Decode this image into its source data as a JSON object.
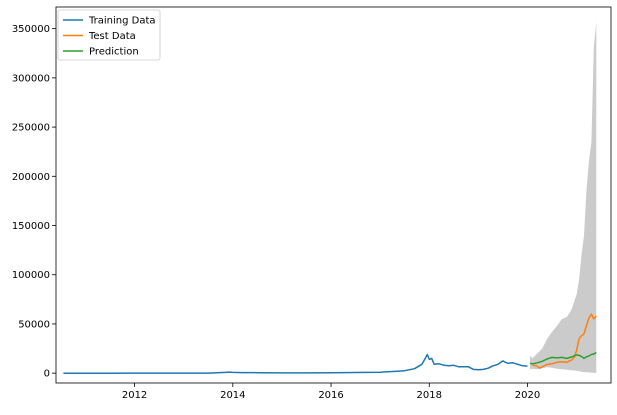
{
  "chart_data": {
    "type": "line",
    "title": "",
    "xlabel": "",
    "ylabel": "",
    "xlim": [
      2010.4,
      2021.7
    ],
    "ylim": [
      -10000,
      372000
    ],
    "x_ticks": [
      2012,
      2014,
      2016,
      2018,
      2020
    ],
    "y_ticks": [
      0,
      50000,
      100000,
      150000,
      200000,
      250000,
      300000,
      350000
    ],
    "legend": {
      "placement": "top-left"
    },
    "grid": false,
    "series": [
      {
        "name": "Training Data",
        "color": "#1f77b4",
        "x": [
          2010.55,
          2011.0,
          2011.5,
          2012.0,
          2012.5,
          2013.0,
          2013.5,
          2013.85,
          2013.92,
          2014.0,
          2014.2,
          2014.5,
          2015.0,
          2015.5,
          2016.0,
          2016.5,
          2017.0,
          2017.3,
          2017.5,
          2017.7,
          2017.85,
          2017.93,
          2017.96,
          2018.0,
          2018.05,
          2018.1,
          2018.2,
          2018.3,
          2018.4,
          2018.5,
          2018.6,
          2018.7,
          2018.8,
          2018.85,
          2018.9,
          2019.0,
          2019.1,
          2019.2,
          2019.3,
          2019.4,
          2019.5,
          2019.55,
          2019.6,
          2019.7,
          2019.8,
          2019.9,
          2020.0
        ],
        "y": [
          0,
          0,
          0,
          10,
          10,
          20,
          100,
          800,
          1100,
          800,
          600,
          500,
          250,
          250,
          400,
          650,
          1000,
          1800,
          2500,
          4500,
          9000,
          16000,
          19000,
          14000,
          15000,
          9000,
          9500,
          8000,
          7500,
          8000,
          6500,
          6500,
          6500,
          5000,
          3800,
          3500,
          3800,
          5000,
          7500,
          9000,
          12500,
          11000,
          10000,
          10500,
          9000,
          7500,
          7200
        ]
      },
      {
        "name": "Test Data",
        "color": "#ff7f0e",
        "x": [
          2020.1,
          2020.2,
          2020.25,
          2020.3,
          2020.4,
          2020.5,
          2020.6,
          2020.7,
          2020.8,
          2020.9,
          2020.95,
          2021.0,
          2021.05,
          2021.1,
          2021.15,
          2021.2,
          2021.25,
          2021.3,
          2021.35,
          2021.4
        ],
        "y": [
          8500,
          7000,
          5000,
          6500,
          8800,
          9500,
          11000,
          11500,
          11000,
          13500,
          16000,
          23000,
          35000,
          38000,
          40000,
          48000,
          56000,
          60000,
          55000,
          58000
        ]
      },
      {
        "name": "Prediction",
        "color": "#2ca02c",
        "x": [
          2020.05,
          2020.1,
          2020.2,
          2020.3,
          2020.4,
          2020.5,
          2020.6,
          2020.7,
          2020.8,
          2020.9,
          2021.0,
          2021.05,
          2021.1,
          2021.15,
          2021.2,
          2021.25,
          2021.3,
          2021.35,
          2021.4
        ],
        "y": [
          10000,
          9500,
          10500,
          12000,
          14500,
          16000,
          15500,
          16000,
          15000,
          16500,
          18500,
          18000,
          17000,
          15000,
          16500,
          17500,
          19000,
          19500,
          21000
        ]
      }
    ],
    "confidence_band": {
      "color": "#a9a9a9",
      "x": [
        2020.05,
        2020.1,
        2020.2,
        2020.3,
        2020.4,
        2020.5,
        2020.6,
        2020.7,
        2020.8,
        2020.9,
        2021.0,
        2021.05,
        2021.1,
        2021.15,
        2021.2,
        2021.25,
        2021.3,
        2021.35,
        2021.4
      ],
      "upper": [
        18000,
        15000,
        20000,
        25000,
        35000,
        42000,
        48000,
        55000,
        57000,
        65000,
        80000,
        95000,
        120000,
        140000,
        185000,
        215000,
        235000,
        330000,
        357000
      ],
      "lower": [
        4000,
        4500,
        4000,
        5000,
        6000,
        5500,
        4500,
        4000,
        3500,
        3000,
        2500,
        2000,
        1500,
        1200,
        1000,
        800,
        600,
        500,
        300
      ]
    }
  }
}
